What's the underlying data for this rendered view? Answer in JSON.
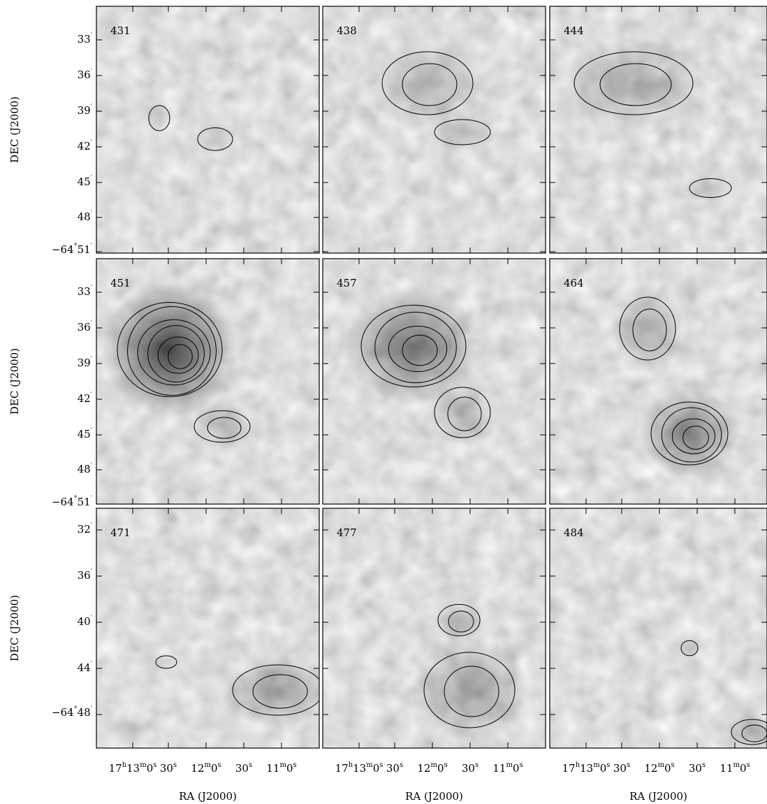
{
  "panels": [
    {
      "label": "431"
    },
    {
      "label": "438"
    },
    {
      "label": "444"
    },
    {
      "label": "451"
    },
    {
      "label": "457"
    },
    {
      "label": "464"
    },
    {
      "label": "471"
    },
    {
      "label": "477"
    },
    {
      "label": "484"
    }
  ],
  "dec_ticks_upper": [
    [
      [
        "33",
        "′"
      ]
    ],
    [
      [
        "36",
        "′"
      ]
    ],
    [
      [
        "39",
        "′"
      ]
    ],
    [
      [
        "42",
        "′"
      ]
    ],
    [
      [
        "45",
        "′"
      ]
    ],
    [
      [
        "48",
        "′"
      ]
    ],
    [
      [
        "−64",
        "°"
      ],
      [
        "51",
        "′"
      ]
    ]
  ],
  "dec_ticks_lower": [
    [
      [
        "32",
        "′"
      ]
    ],
    [
      [
        "36",
        "′"
      ]
    ],
    [
      [
        "40",
        "′"
      ]
    ],
    [
      [
        "44",
        "′"
      ]
    ],
    [
      [
        "−64",
        "°"
      ],
      [
        "48",
        "′"
      ]
    ]
  ],
  "ra_ticks": [
    [
      [
        "17",
        "h"
      ],
      [
        "13",
        "m"
      ],
      [
        "0",
        "s"
      ]
    ],
    [
      [
        "30",
        "s"
      ]
    ],
    [
      [
        "12",
        "m"
      ],
      [
        "0",
        "s"
      ]
    ],
    [
      [
        "30",
        "s"
      ]
    ],
    [
      [
        "11",
        "m"
      ],
      [
        "0",
        "s"
      ]
    ]
  ],
  "y_axis_title": "DEC (J2000)",
  "x_axis_title": "RA (J2000)"
}
